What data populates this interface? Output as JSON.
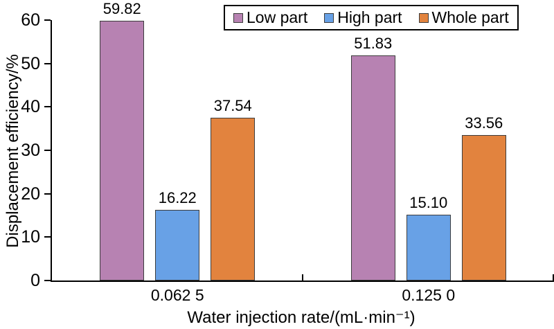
{
  "chart_data": {
    "type": "bar",
    "title": "",
    "xlabel": "Water injection rate/(mL·min⁻¹)",
    "ylabel": "Displacement efficiency/%",
    "categories": [
      "0.062 5",
      "0.125 0"
    ],
    "series": [
      {
        "name": "Low part",
        "fill": "#B782B2",
        "values": [
          59.82,
          51.83
        ]
      },
      {
        "name": "High part",
        "fill": "#68A1E6",
        "values": [
          16.22,
          15.1
        ]
      },
      {
        "name": "Whole part",
        "fill": "#E2833E",
        "values": [
          37.54,
          33.56
        ]
      }
    ],
    "ylim": [
      0,
      60
    ],
    "ytick_step": 10,
    "yticks": [
      0,
      10,
      20,
      30,
      40,
      50,
      60
    ],
    "grid": false,
    "legend_position": "top-center",
    "value_label_decimals": 2,
    "axis_color": "#000000",
    "bar_border_color": "#3c3c3c"
  }
}
